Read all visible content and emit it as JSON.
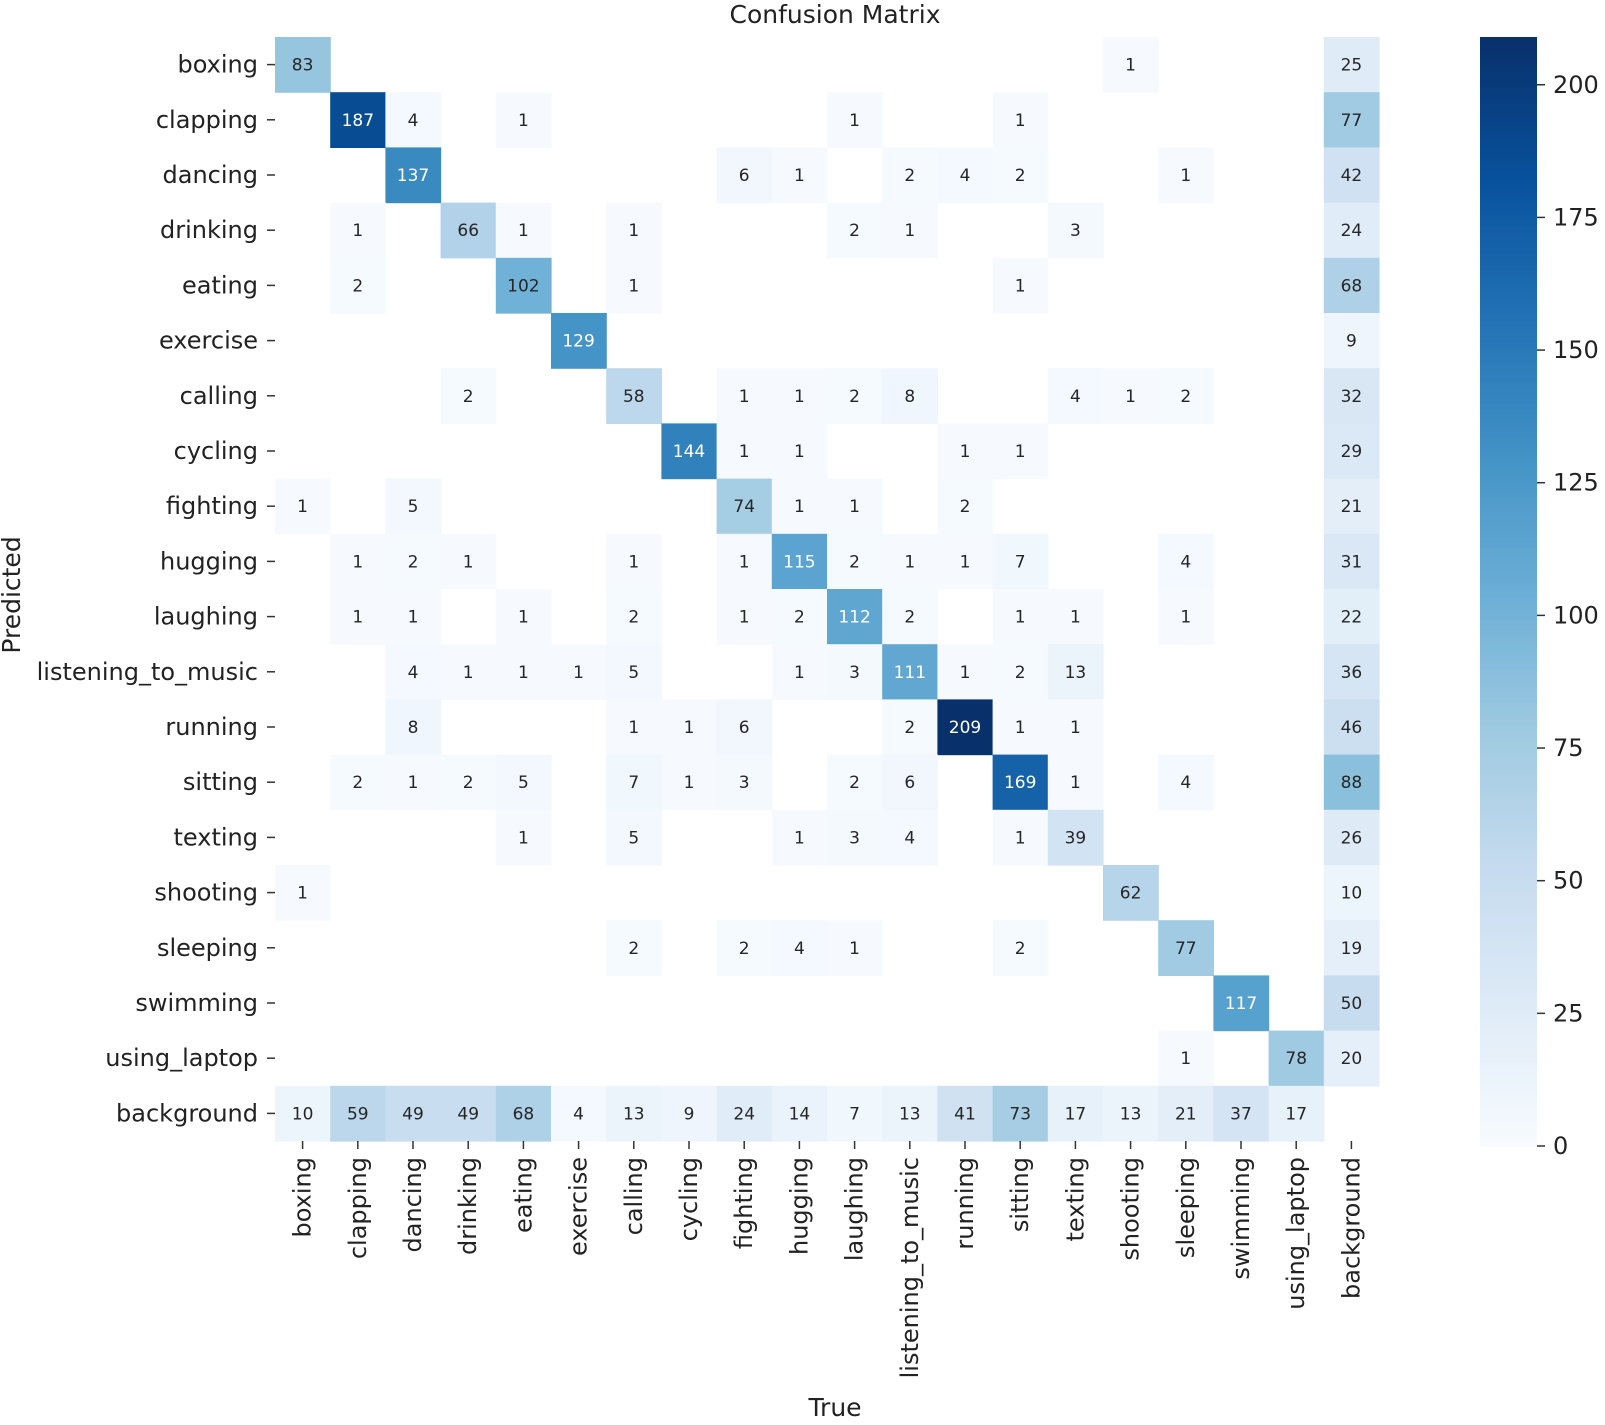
{
  "chart_data": {
    "type": "heatmap",
    "title": "Confusion Matrix",
    "xlabel": "True",
    "ylabel": "Predicted",
    "row_labels": [
      "boxing",
      "clapping",
      "dancing",
      "drinking",
      "eating",
      "exercise",
      "calling",
      "cycling",
      "fighting",
      "hugging",
      "laughing",
      "listening_to_music",
      "running",
      "sitting",
      "texting",
      "shooting",
      "sleeping",
      "swimming",
      "using_laptop",
      "background"
    ],
    "col_labels": [
      "boxing",
      "clapping",
      "dancing",
      "drinking",
      "eating",
      "exercise",
      "calling",
      "cycling",
      "fighting",
      "hugging",
      "laughing",
      "listening_to_music",
      "running",
      "sitting",
      "texting",
      "shooting",
      "sleeping",
      "swimming",
      "using_laptop",
      "background"
    ],
    "matrix": [
      [
        83,
        0,
        0,
        0,
        0,
        0,
        0,
        0,
        0,
        0,
        0,
        0,
        0,
        0,
        0,
        1,
        0,
        0,
        0,
        25
      ],
      [
        0,
        187,
        4,
        0,
        1,
        0,
        0,
        0,
        0,
        0,
        1,
        0,
        0,
        1,
        0,
        0,
        0,
        0,
        0,
        77
      ],
      [
        0,
        0,
        137,
        0,
        0,
        0,
        0,
        0,
        6,
        1,
        0,
        2,
        4,
        2,
        0,
        0,
        1,
        0,
        0,
        42
      ],
      [
        0,
        1,
        0,
        66,
        1,
        0,
        1,
        0,
        0,
        0,
        2,
        1,
        0,
        0,
        3,
        0,
        0,
        0,
        0,
        24
      ],
      [
        0,
        2,
        0,
        0,
        102,
        0,
        1,
        0,
        0,
        0,
        0,
        0,
        0,
        1,
        0,
        0,
        0,
        0,
        0,
        68
      ],
      [
        0,
        0,
        0,
        0,
        0,
        129,
        0,
        0,
        0,
        0,
        0,
        0,
        0,
        0,
        0,
        0,
        0,
        0,
        0,
        9
      ],
      [
        0,
        0,
        0,
        2,
        0,
        0,
        58,
        0,
        1,
        1,
        2,
        8,
        0,
        0,
        4,
        1,
        2,
        0,
        0,
        32
      ],
      [
        0,
        0,
        0,
        0,
        0,
        0,
        0,
        144,
        1,
        1,
        0,
        0,
        1,
        1,
        0,
        0,
        0,
        0,
        0,
        29
      ],
      [
        1,
        0,
        5,
        0,
        0,
        0,
        0,
        0,
        74,
        1,
        1,
        0,
        2,
        0,
        0,
        0,
        0,
        0,
        0,
        21
      ],
      [
        0,
        1,
        2,
        1,
        0,
        0,
        1,
        0,
        1,
        115,
        2,
        1,
        1,
        7,
        0,
        0,
        4,
        0,
        0,
        31
      ],
      [
        0,
        1,
        1,
        0,
        1,
        0,
        2,
        0,
        1,
        2,
        112,
        2,
        0,
        1,
        1,
        0,
        1,
        0,
        0,
        22
      ],
      [
        0,
        0,
        4,
        1,
        1,
        1,
        5,
        0,
        0,
        1,
        3,
        111,
        1,
        2,
        13,
        0,
        0,
        0,
        0,
        36
      ],
      [
        0,
        0,
        8,
        0,
        0,
        0,
        1,
        1,
        6,
        0,
        0,
        2,
        209,
        1,
        1,
        0,
        0,
        0,
        0,
        46
      ],
      [
        0,
        2,
        1,
        2,
        5,
        0,
        7,
        1,
        3,
        0,
        2,
        6,
        0,
        169,
        1,
        0,
        4,
        0,
        0,
        88
      ],
      [
        0,
        0,
        0,
        0,
        1,
        0,
        5,
        0,
        0,
        1,
        3,
        4,
        0,
        1,
        39,
        0,
        0,
        0,
        0,
        26
      ],
      [
        1,
        0,
        0,
        0,
        0,
        0,
        0,
        0,
        0,
        0,
        0,
        0,
        0,
        0,
        0,
        62,
        0,
        0,
        0,
        10
      ],
      [
        0,
        0,
        0,
        0,
        0,
        0,
        2,
        0,
        2,
        4,
        1,
        0,
        0,
        2,
        0,
        0,
        77,
        0,
        0,
        19
      ],
      [
        0,
        0,
        0,
        0,
        0,
        0,
        0,
        0,
        0,
        0,
        0,
        0,
        0,
        0,
        0,
        0,
        0,
        117,
        0,
        50
      ],
      [
        0,
        0,
        0,
        0,
        0,
        0,
        0,
        0,
        0,
        0,
        0,
        0,
        0,
        0,
        0,
        0,
        1,
        0,
        78,
        20
      ],
      [
        10,
        59,
        49,
        49,
        68,
        4,
        13,
        9,
        24,
        14,
        7,
        13,
        41,
        73,
        17,
        13,
        21,
        37,
        17,
        0
      ]
    ],
    "zero_cells_blank": true,
    "colormap": "Blues",
    "vmin": 0,
    "vmax": 209,
    "colorbar_ticks": [
      0,
      25,
      50,
      75,
      100,
      125,
      150,
      175,
      200
    ]
  }
}
